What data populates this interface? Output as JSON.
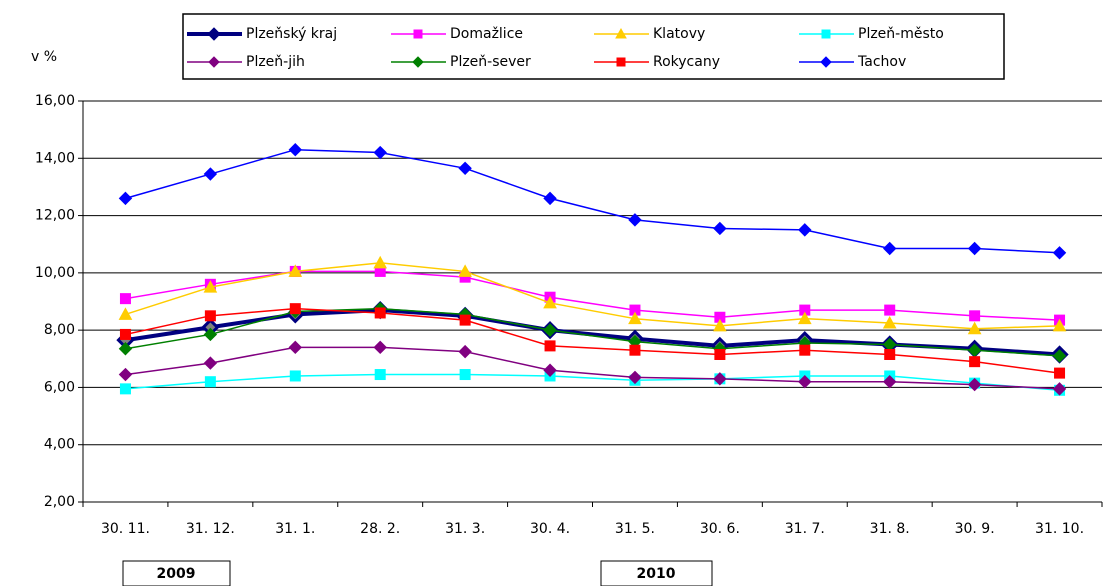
{
  "chart_data": {
    "type": "line",
    "y_label": "v %",
    "categories": [
      "30. 11.",
      "31. 12.",
      "31. 1.",
      "28. 2.",
      "31. 3.",
      "30. 4.",
      "31. 5.",
      "30. 6.",
      "31. 7.",
      "31. 8.",
      "30. 9.",
      "31. 10."
    ],
    "year_labels": [
      "2009",
      "2010"
    ],
    "ylim": [
      2,
      16
    ],
    "yticks": [
      {
        "value": 2,
        "label": "2,00"
      },
      {
        "value": 4,
        "label": "4,00"
      },
      {
        "value": 6,
        "label": "6,00"
      },
      {
        "value": 8,
        "label": "8,00"
      },
      {
        "value": 10,
        "label": "10,00"
      },
      {
        "value": 12,
        "label": "12,00"
      },
      {
        "value": 14,
        "label": "14,00"
      },
      {
        "value": 16,
        "label": "16,00"
      }
    ],
    "grid": true,
    "legend": "top",
    "series": [
      {
        "name": "Plzeňský kraj",
        "color": "#000080",
        "marker": "diamond",
        "values": [
          7.65,
          8.1,
          8.55,
          8.7,
          8.5,
          8.0,
          7.7,
          7.45,
          7.65,
          7.5,
          7.35,
          7.15
        ]
      },
      {
        "name": "Domažlice",
        "color": "#ff00ff",
        "marker": "square",
        "values": [
          9.1,
          9.6,
          10.05,
          10.05,
          9.85,
          9.15,
          8.7,
          8.45,
          8.7,
          8.7,
          8.5,
          8.35
        ]
      },
      {
        "name": "Klatovy",
        "color": "#ffcc00",
        "marker": "triangle",
        "values": [
          8.55,
          9.5,
          10.05,
          10.35,
          10.05,
          8.95,
          8.4,
          8.15,
          8.4,
          8.25,
          8.05,
          8.15
        ]
      },
      {
        "name": "Plzeň-město",
        "color": "#00ffff",
        "marker": "square",
        "values": [
          5.95,
          6.2,
          6.4,
          6.45,
          6.45,
          6.4,
          6.25,
          6.3,
          6.4,
          6.4,
          6.15,
          5.9
        ]
      },
      {
        "name": "Plzeň-jih",
        "color": "#800080",
        "marker": "diamond",
        "values": [
          6.45,
          6.85,
          7.4,
          7.4,
          7.25,
          6.6,
          6.35,
          6.3,
          6.2,
          6.2,
          6.1,
          5.95
        ]
      },
      {
        "name": "Plzeň-sever",
        "color": "#008000",
        "marker": "diamond",
        "values": [
          7.35,
          7.85,
          8.65,
          8.75,
          8.55,
          8.0,
          7.6,
          7.35,
          7.55,
          7.5,
          7.3,
          7.1
        ]
      },
      {
        "name": "Rokycany",
        "color": "#ff0000",
        "marker": "square",
        "values": [
          7.85,
          8.5,
          8.75,
          8.6,
          8.35,
          7.45,
          7.3,
          7.15,
          7.3,
          7.15,
          6.9,
          6.5
        ]
      },
      {
        "name": "Tachov",
        "color": "#0000ff",
        "marker": "diamond",
        "values": [
          12.6,
          13.45,
          14.3,
          14.2,
          13.65,
          12.6,
          11.85,
          11.55,
          11.5,
          10.85,
          10.85,
          10.7
        ]
      }
    ]
  }
}
